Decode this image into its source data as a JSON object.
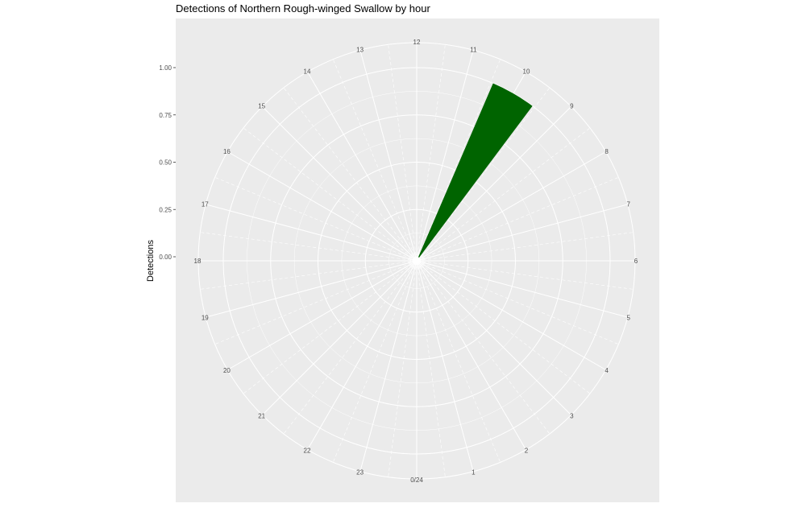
{
  "chart_data": {
    "type": "bar",
    "coord": "polar",
    "title": "Detections of Northern Rough-winged Swallow by hour",
    "xlabel": "",
    "ylabel": "Detections",
    "categories": [
      "0/24",
      "1",
      "2",
      "3",
      "4",
      "5",
      "6",
      "7",
      "8",
      "9",
      "10",
      "11",
      "12",
      "13",
      "14",
      "15",
      "16",
      "17",
      "18",
      "19",
      "20",
      "21",
      "22",
      "23"
    ],
    "values": [
      0,
      0,
      0,
      0,
      0,
      0,
      0,
      0,
      0,
      0,
      1,
      0,
      0,
      0,
      0,
      0,
      0,
      0,
      0,
      0,
      0,
      0,
      0,
      0
    ],
    "ylim": [
      0,
      1.0
    ],
    "y_ticks": [
      "0.00",
      "0.25",
      "0.50",
      "0.75",
      "1.00"
    ],
    "y_tick_values": [
      0,
      0.25,
      0.5,
      0.75,
      1.0
    ],
    "bar_color": "#006400",
    "panel_color": "#ebebeb",
    "grid_color": "#ffffff",
    "grid": true
  }
}
